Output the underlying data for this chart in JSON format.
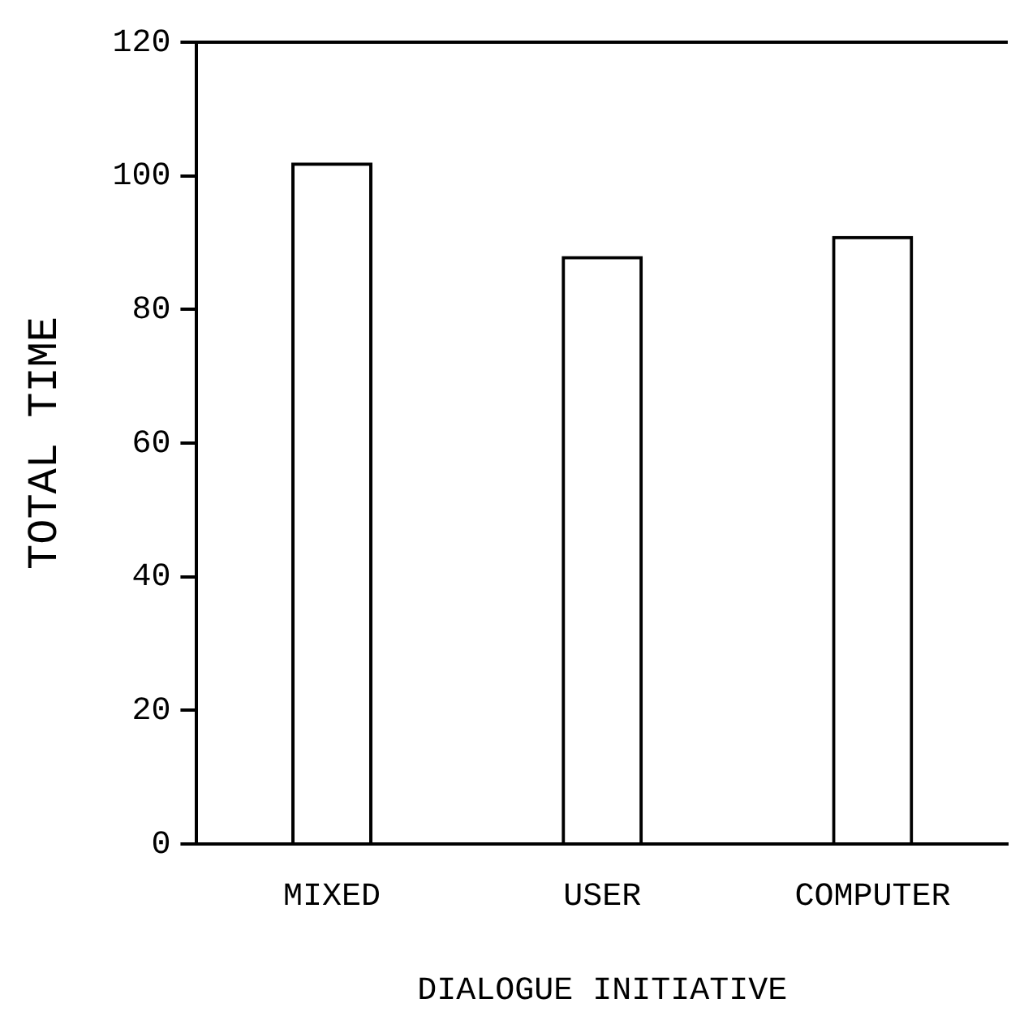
{
  "chart_data": {
    "type": "bar",
    "xlabel": "DIALOGUE INITIATIVE",
    "ylabel": "TOTAL TIME",
    "categories": [
      "MIXED",
      "USER",
      "COMPUTER"
    ],
    "values": [
      102,
      88,
      91
    ],
    "color": "#000000",
    "ylim": [
      0,
      120
    ],
    "yticks": [
      0,
      20,
      40,
      60,
      80,
      100,
      120
    ],
    "grid": false,
    "legend": false
  }
}
